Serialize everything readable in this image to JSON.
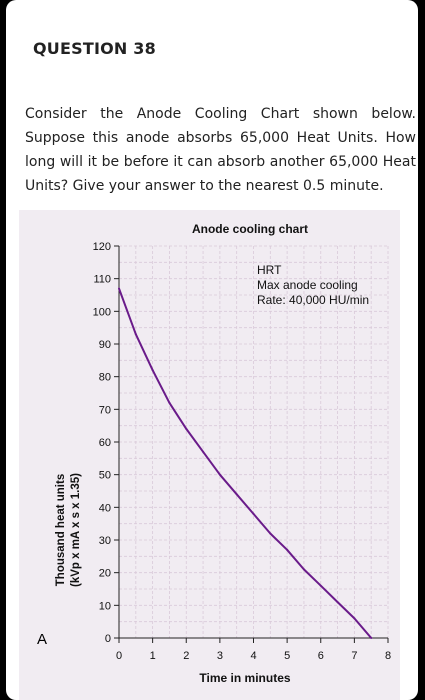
{
  "question": {
    "title": "QUESTION 38",
    "text": "Consider the Anode Cooling Chart shown below. Suppose this anode absorbs 65,000 Heat Units. How long will it be before it can absorb another 65,000 Heat Units? Give your answer to the nearest 0.5 minute."
  },
  "figure_label": "A",
  "colors": {
    "curve": "#6a1b8a",
    "panel": "#f1ecf2",
    "grid": "#d9c9d9"
  },
  "chart_data": {
    "type": "line",
    "title": "Anode cooling chart",
    "xlabel": "Time in minutes",
    "ylabel_line1": "Thousand heat units",
    "ylabel_line2": "(kVp x mA x s x 1.35)",
    "xlim": [
      0,
      8
    ],
    "ylim": [
      0,
      120
    ],
    "x_ticks": [
      "0",
      "1",
      "2",
      "3",
      "4",
      "5",
      "6",
      "7",
      "8"
    ],
    "y_ticks": [
      "0",
      "10",
      "20",
      "30",
      "40",
      "50",
      "60",
      "70",
      "80",
      "90",
      "100",
      "110",
      "120"
    ],
    "annotation": [
      "HRT",
      "Max anode cooling",
      "Rate: 40,000 HU/min"
    ],
    "grid": true,
    "series": [
      {
        "x": [
          0,
          0.5,
          1,
          1.5,
          2,
          2.5,
          3,
          3.5,
          4,
          4.5,
          5,
          5.5,
          6,
          6.5,
          7,
          7.5
        ],
        "values": [
          107,
          93,
          82,
          72,
          64,
          57,
          50,
          44,
          38,
          32,
          27,
          21,
          16,
          11,
          6,
          0
        ]
      }
    ]
  }
}
